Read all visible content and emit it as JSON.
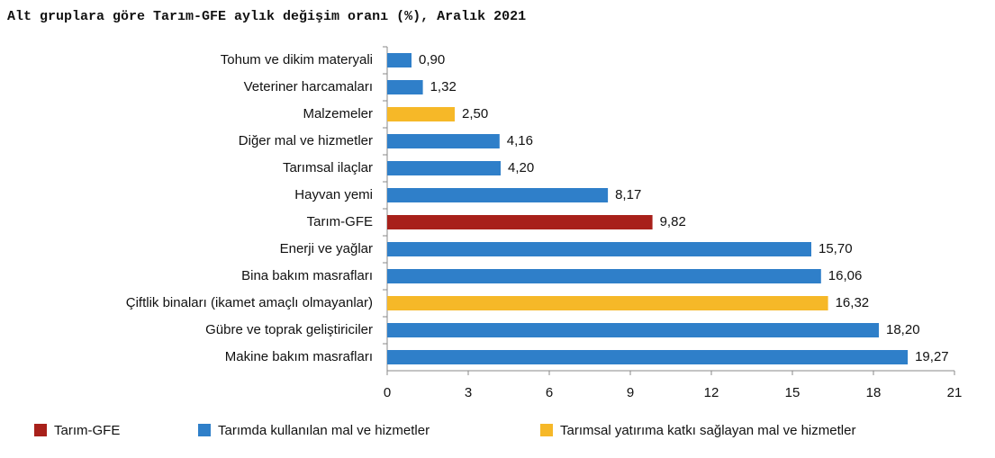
{
  "chart_data": {
    "type": "bar",
    "orientation": "horizontal",
    "title": "Alt gruplara göre Tarım-GFE aylık değişim oranı (%), Aralık 2021",
    "categories": [
      "Tohum ve dikim materyali",
      "Veteriner harcamaları",
      "Malzemeler",
      "Diğer mal ve hizmetler",
      "Tarımsal ilaçlar",
      "Hayvan yemi",
      "Tarım-GFE",
      "Enerji ve yağlar",
      "Bina bakım masrafları",
      "Çiftlik binaları (ikamet amaçlı olmayanlar)",
      "Gübre ve toprak geliştiriciler",
      "Makine bakım masrafları"
    ],
    "series": [
      {
        "name": "Tarım-GFE",
        "color": "#a8201a",
        "values": [
          null,
          null,
          null,
          null,
          null,
          null,
          9.82,
          null,
          null,
          null,
          null,
          null
        ],
        "value_labels": [
          null,
          null,
          null,
          null,
          null,
          null,
          "9,82",
          null,
          null,
          null,
          null,
          null
        ]
      },
      {
        "name": "Tarımda kullanılan mal ve hizmetler",
        "color": "#2f7fc9",
        "values": [
          0.9,
          1.32,
          null,
          4.16,
          4.2,
          8.17,
          null,
          15.7,
          16.06,
          null,
          18.2,
          19.27
        ],
        "value_labels": [
          "0,90",
          "1,32",
          null,
          "4,16",
          "4,20",
          "8,17",
          null,
          "15,70",
          "16,06",
          null,
          "18,20",
          "19,27"
        ]
      },
      {
        "name": "Tarımsal yatırıma katkı sağlayan mal ve hizmetler",
        "color": "#f6b828",
        "values": [
          null,
          null,
          2.5,
          null,
          null,
          null,
          null,
          null,
          null,
          16.32,
          null,
          null
        ],
        "value_labels": [
          null,
          null,
          "2,50",
          null,
          null,
          null,
          null,
          null,
          null,
          "16,32",
          null,
          null
        ]
      }
    ],
    "xlim": [
      0,
      21
    ],
    "xticks": [
      0,
      3,
      6,
      9,
      12,
      15,
      18,
      21
    ],
    "legend": "bottom"
  }
}
